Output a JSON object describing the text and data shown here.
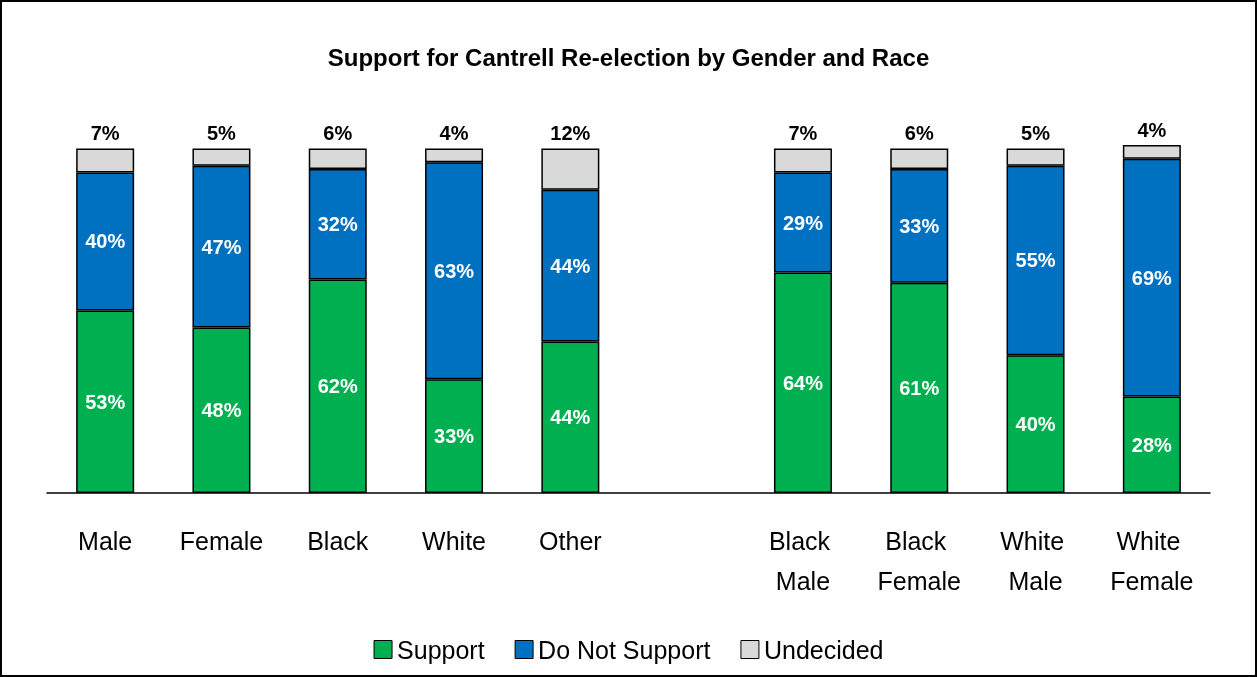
{
  "chart_data": {
    "type": "bar",
    "title": "Support for Cantrell Re-election by Gender and Race",
    "stacked": true,
    "legend": "bottom",
    "categories": [
      "Male",
      "Female",
      "Black",
      "White",
      "Other",
      null,
      "Black Male",
      "Black Female",
      "White Male",
      "White Female"
    ],
    "series": [
      {
        "name": "Support",
        "color": "#00b050",
        "values": [
          53,
          48,
          62,
          33,
          44,
          null,
          64,
          61,
          40,
          28
        ],
        "value_labels": [
          "53%",
          "48%",
          "62%",
          "33%",
          "44%",
          null,
          "64%",
          "61%",
          "40%",
          "28%"
        ]
      },
      {
        "name": "Do Not Support",
        "color": "#0070c0",
        "values": [
          40,
          47,
          32,
          63,
          44,
          null,
          29,
          33,
          55,
          69
        ],
        "value_labels": [
          "40%",
          "47%",
          "32%",
          "63%",
          "44%",
          null,
          "29%",
          "33%",
          "55%",
          "69%"
        ]
      },
      {
        "name": "Undecided",
        "color": "#d9d9d9",
        "values": [
          7,
          5,
          6,
          4,
          12,
          null,
          7,
          6,
          5,
          4
        ],
        "value_labels": [
          "7%",
          "5%",
          "6%",
          "4%",
          "12%",
          null,
          "7%",
          "6%",
          "5%",
          "4%"
        ]
      }
    ]
  }
}
